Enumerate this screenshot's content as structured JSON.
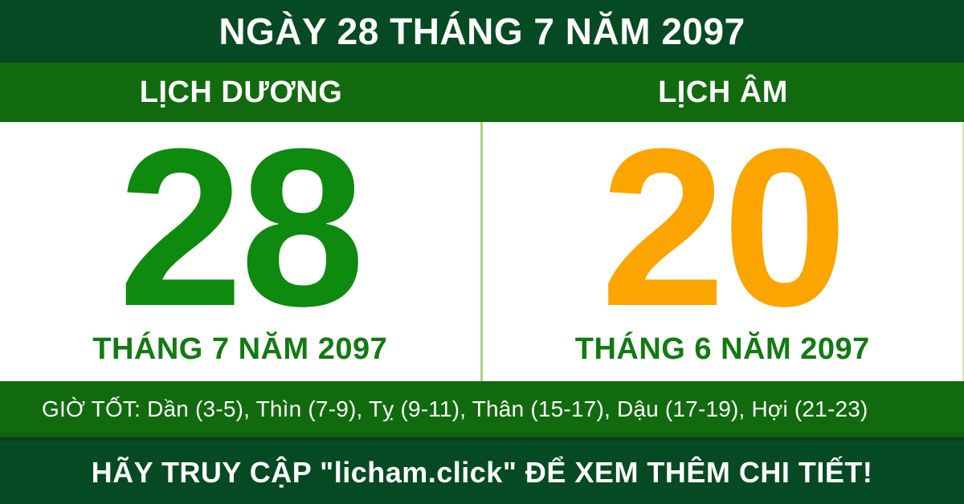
{
  "header": {
    "title": "NGÀY 28 THÁNG 7 NĂM 2097"
  },
  "solar": {
    "label": "LỊCH DƯƠNG",
    "day": "28",
    "month_year": "THÁNG 7 NĂM 2097"
  },
  "lunar": {
    "label": "LỊCH ÂM",
    "day": "20",
    "month_year": "THÁNG 6 NĂM 2097"
  },
  "good_hours": {
    "text": "GIỜ TỐT: Dần (3-5), Thìn (7-9), Tỵ (9-11), Thân (15-17), Dậu (17-19), Hợi (21-23)"
  },
  "footer": {
    "text": "HÃY TRUY CẬP \"licham.click\" ĐỂ XEM THÊM CHI TIẾT!"
  },
  "colors": {
    "dark_green": "#064a23",
    "band_green": "#116b0e",
    "solar_day_green": "#0e8a0e",
    "month_label_green": "#127a12",
    "lunar_day_orange": "#fca400",
    "divider_light_green": "#abd27f",
    "text_white": "#ffffff"
  }
}
